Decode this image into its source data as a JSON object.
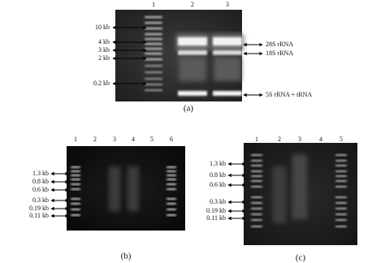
{
  "panels": [
    {
      "lanes": [
        "1",
        "2",
        "3"
      ],
      "markers": [
        "10 kb",
        "4 kb",
        "3 kb",
        "2 kb",
        "0.2 kb"
      ],
      "annotations": [
        "28S rRNA",
        "18S rRNA",
        "5S rRNA + tRNA"
      ],
      "caption": "(a)"
    },
    {
      "lanes": [
        "1",
        "2",
        "3",
        "4",
        "5",
        "6"
      ],
      "markers": [
        "1.3 kb",
        "0.8 kb",
        "0.6 kb",
        "0.3 kb",
        "0.19 kb",
        "0.11 kb"
      ],
      "annotations": [],
      "caption": "(b)"
    },
    {
      "lanes": [
        "1",
        "2",
        "3",
        "4",
        "5"
      ],
      "markers": [
        "1.3 kb",
        "0.8 kb",
        "0.6 kb",
        "0.3 kb",
        "0.19 kb",
        "0.11 kb"
      ],
      "annotations": [],
      "caption": "(c)"
    }
  ]
}
